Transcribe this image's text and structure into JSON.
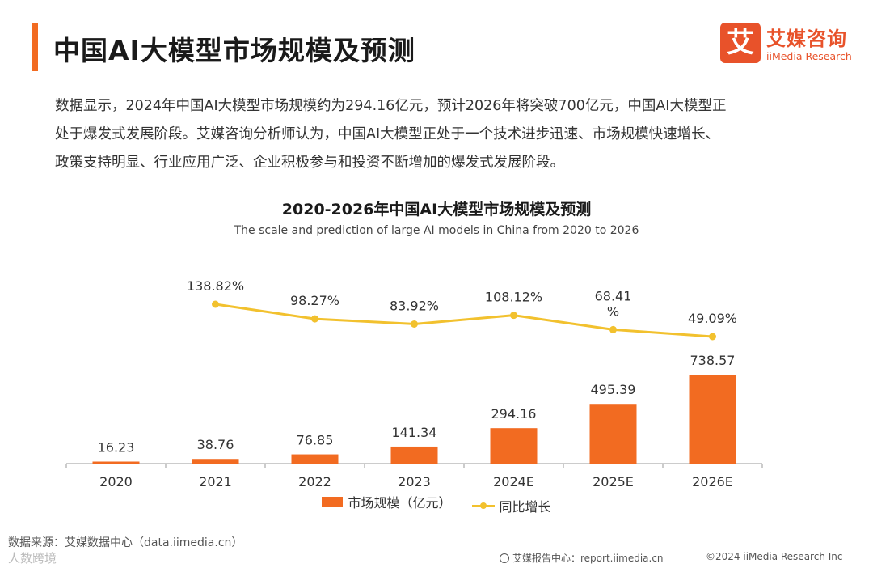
{
  "header": {
    "title": "中国AI大模型市场规模及预测",
    "logo_mark": "艾",
    "logo_cn": "艾媒咨询",
    "logo_en": "iiMedia Research"
  },
  "intro": {
    "lines": [
      "数据显示，2024年中国AI大模型市场规模约为294.16亿元，预计2026年将突破700亿元，中国AI大模型正",
      "处于爆发式发展阶段。艾媒咨询分析师认为，中国AI大模型正处于一个技术进步迅速、市场规模快速增长、",
      "政策支持明显、行业应用广泛、企业积极参与和投资不断增加的爆发式发展阶段。"
    ]
  },
  "chart_data": {
    "type": "bar",
    "title": "2020-2026年中国AI大模型市场规模及预测",
    "subtitle": "The scale and prediction of large AI models in China from 2020 to 2026",
    "categories": [
      "2020",
      "2021",
      "2022",
      "2023",
      "2024E",
      "2025E",
      "2026E"
    ],
    "series": [
      {
        "name": "市场规模（亿元）",
        "type": "bar",
        "color": "#f26b21",
        "values": [
          16.23,
          38.76,
          76.85,
          141.34,
          294.16,
          495.39,
          738.57
        ],
        "labels": [
          "16.23",
          "38.76",
          "76.85",
          "141.34",
          "294.16",
          "495.39",
          "738.57"
        ]
      },
      {
        "name": "同比增长",
        "type": "line",
        "color": "#f2c12e",
        "values": [
          null,
          138.82,
          98.27,
          83.92,
          108.12,
          68.41,
          49.09
        ],
        "labels": [
          "",
          "138.82%",
          "98.27%",
          "83.92%",
          "108.12%",
          "68.41|%",
          "49.09%"
        ]
      }
    ],
    "legend": "bottom",
    "grid": false
  },
  "source": "数据来源：艾媒数据中心（data.iimedia.cn）",
  "footer": {
    "watermark": "人数跨境",
    "center": "艾媒报告中心：report.iimedia.cn",
    "right": "©2024  iiMedia Research  Inc"
  }
}
